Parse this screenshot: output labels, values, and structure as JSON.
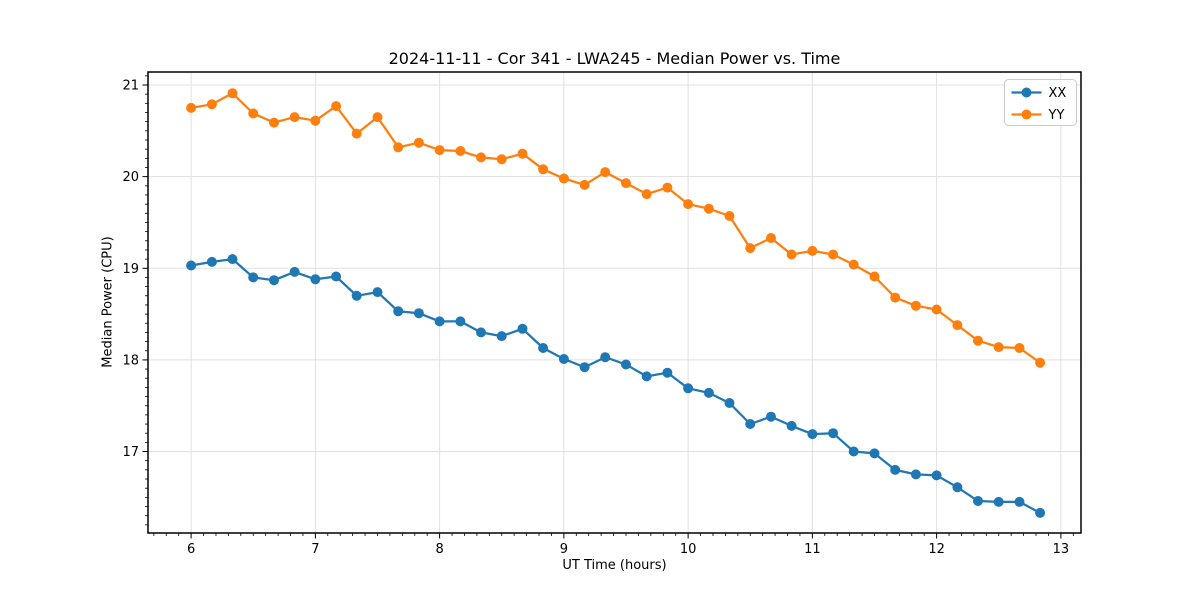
{
  "figure": {
    "background": "#ffffff",
    "spine_color": "#000000",
    "grid_color": "#e0e0e0",
    "tick_color": "#000000",
    "text_color": "#000000"
  },
  "chart_data": {
    "type": "line",
    "title": "2024-11-11 - Cor 341 - LWA245 - Median Power vs. Time",
    "xlabel": "UT Time (hours)",
    "ylabel": "Median Power (CPU)",
    "xlim": [
      5.653,
      13.162
    ],
    "ylim": [
      16.111,
      21.142
    ],
    "xticks": [
      6,
      7,
      8,
      9,
      10,
      11,
      12,
      13
    ],
    "yticks": [
      17,
      18,
      19,
      20,
      21
    ],
    "minor_tick_step": 0.1,
    "grid": "major",
    "legend_position": "upper right",
    "x": [
      6.0,
      6.167,
      6.333,
      6.5,
      6.667,
      6.833,
      7.0,
      7.167,
      7.333,
      7.5,
      7.667,
      7.833,
      8.0,
      8.167,
      8.333,
      8.5,
      8.667,
      8.833,
      9.0,
      9.167,
      9.333,
      9.5,
      9.667,
      9.833,
      10.0,
      10.167,
      10.333,
      10.5,
      10.667,
      10.833,
      11.0,
      11.167,
      11.333,
      11.5,
      11.667,
      11.833,
      12.0,
      12.167,
      12.333,
      12.5,
      12.667,
      12.833
    ],
    "series": [
      {
        "name": "XX",
        "color": "#1f77b4",
        "marker": "circle",
        "values": [
          19.03,
          19.07,
          19.1,
          18.9,
          18.87,
          18.96,
          18.88,
          18.91,
          18.7,
          18.74,
          18.53,
          18.51,
          18.42,
          18.42,
          18.3,
          18.26,
          18.34,
          18.13,
          18.01,
          17.92,
          18.03,
          17.95,
          17.82,
          17.86,
          17.69,
          17.64,
          17.53,
          17.3,
          17.38,
          17.28,
          17.19,
          17.2,
          17.0,
          16.98,
          16.8,
          16.75,
          16.74,
          16.61,
          16.46,
          16.45,
          16.45,
          16.33
        ]
      },
      {
        "name": "YY",
        "color": "#ff7f0e",
        "marker": "circle",
        "values": [
          20.75,
          20.79,
          20.91,
          20.69,
          20.59,
          20.65,
          20.61,
          20.77,
          20.47,
          20.65,
          20.32,
          20.37,
          20.29,
          20.28,
          20.21,
          20.19,
          20.25,
          20.08,
          19.98,
          19.91,
          20.05,
          19.93,
          19.81,
          19.88,
          19.7,
          19.65,
          19.57,
          19.22,
          19.33,
          19.15,
          19.19,
          19.15,
          19.04,
          18.91,
          18.68,
          18.59,
          18.55,
          18.38,
          18.21,
          18.14,
          18.13,
          17.97
        ]
      }
    ]
  }
}
